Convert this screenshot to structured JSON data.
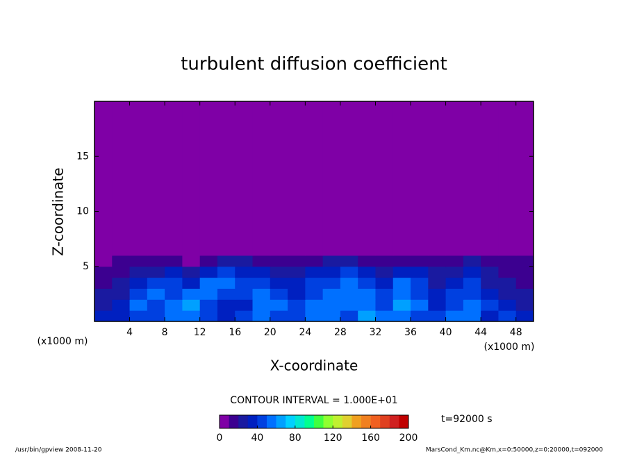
{
  "chart_data": {
    "type": "heatmap",
    "title": "turbulent diffusion coefficient",
    "x_label": "X-coordinate",
    "y_label": "Z-coordinate",
    "x_unit_label": "(x1000 m)",
    "y_unit_label": "(x1000 m)",
    "xlim": [
      0,
      50
    ],
    "ylim": [
      0,
      20
    ],
    "xticks": [
      4,
      8,
      12,
      16,
      20,
      24,
      28,
      32,
      36,
      40,
      44,
      48
    ],
    "yticks": [
      5,
      10,
      15
    ],
    "x_edges": [
      0,
      2,
      4,
      6,
      8,
      10,
      12,
      14,
      16,
      18,
      20,
      22,
      24,
      26,
      28,
      30,
      32,
      34,
      36,
      38,
      40,
      42,
      44,
      46,
      48,
      50
    ],
    "y_edges": [
      0,
      1,
      2,
      3,
      4,
      5,
      6,
      7,
      20
    ],
    "values": [
      [
        30,
        35,
        45,
        40,
        50,
        55,
        45,
        35,
        40,
        50,
        45,
        40,
        55,
        50,
        45,
        60,
        50,
        55,
        45,
        40,
        50,
        55,
        35,
        40,
        30
      ],
      [
        25,
        30,
        50,
        45,
        55,
        60,
        40,
        30,
        35,
        55,
        50,
        45,
        50,
        55,
        50,
        55,
        45,
        60,
        50,
        35,
        45,
        50,
        40,
        35,
        25
      ],
      [
        20,
        25,
        40,
        50,
        45,
        50,
        55,
        45,
        40,
        50,
        45,
        35,
        45,
        50,
        55,
        50,
        40,
        55,
        45,
        30,
        40,
        45,
        30,
        25,
        20
      ],
      [
        15,
        20,
        30,
        45,
        40,
        35,
        50,
        55,
        45,
        40,
        35,
        30,
        40,
        45,
        50,
        45,
        35,
        50,
        40,
        25,
        35,
        40,
        25,
        20,
        15
      ],
      [
        10,
        15,
        20,
        25,
        30,
        20,
        35,
        40,
        35,
        30,
        25,
        20,
        30,
        35,
        40,
        30,
        25,
        35,
        30,
        20,
        25,
        30,
        20,
        15,
        10
      ],
      [
        5,
        10,
        10,
        15,
        10,
        5,
        15,
        20,
        20,
        15,
        10,
        10,
        15,
        20,
        20,
        15,
        10,
        15,
        15,
        10,
        15,
        20,
        15,
        10,
        10
      ],
      [
        0,
        5,
        0,
        0,
        0,
        0,
        0,
        5,
        5,
        5,
        0,
        0,
        0,
        5,
        5,
        0,
        0,
        0,
        0,
        0,
        0,
        5,
        5,
        5,
        5
      ],
      [
        0,
        0,
        0,
        0,
        0,
        0,
        0,
        0,
        0,
        0,
        0,
        0,
        0,
        0,
        0,
        0,
        0,
        0,
        0,
        0,
        0,
        0,
        0,
        0,
        0
      ]
    ],
    "level_colors": [
      "#7f00a6",
      "#3c0090",
      "#1a1aa0",
      "#0020c0",
      "#0040e0",
      "#0070ff",
      "#00a0ff",
      "#00d0ff",
      "#00e8d0",
      "#00ff90",
      "#40ff40",
      "#90ff30",
      "#c0f030",
      "#e0d030",
      "#f0a020",
      "#f08020",
      "#f06020",
      "#e04020",
      "#d02020",
      "#c00000"
    ],
    "clim": [
      0,
      200
    ],
    "cticks": [
      0,
      40,
      80,
      120,
      160,
      200
    ],
    "contour_interval_label": "CONTOUR INTERVAL = 1.000E+01",
    "time_label": "t=92000 s",
    "footer_left": "/usr/bin/gpview  2008-11-20",
    "footer_right": "MarsCond_Km.nc@Km,x=0:50000,z=0:20000,t=092000"
  }
}
